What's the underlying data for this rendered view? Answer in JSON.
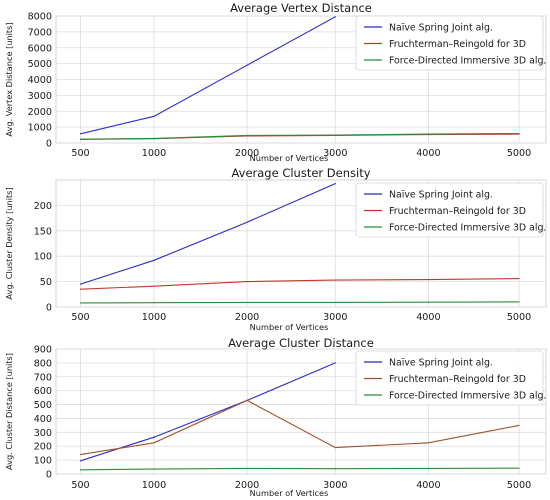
{
  "chart_data": [
    {
      "type": "line",
      "title": "Average Vertex Distance",
      "xlabel": "Number of Vertices",
      "ylabel": "Avg. Vertex Distance [units]",
      "categories": [
        "500",
        "1000",
        "2000",
        "3000",
        "4000",
        "5000"
      ],
      "ylim": [
        0,
        8000
      ],
      "yticks": [
        0,
        1000,
        2000,
        3000,
        4000,
        5000,
        6000,
        7000,
        8000
      ],
      "grid": true,
      "legend": "top-right",
      "series": [
        {
          "name": "Naïve Spring Joint alg.",
          "color": "#2b2bc8",
          "values": [
            580,
            1680,
            4900,
            7950,
            null,
            null
          ]
        },
        {
          "name": "Fruchterman–Reingold for 3D",
          "color": "#c0392b",
          "values": [
            230,
            270,
            440,
            480,
            530,
            560
          ]
        },
        {
          "name": "Force-Directed Immersive 3D alg.",
          "color": "#2e8b3e",
          "values": [
            240,
            290,
            480,
            500,
            560,
            600
          ]
        }
      ]
    },
    {
      "type": "line",
      "title": "Average Cluster Density",
      "xlabel": "Number of Vertices",
      "ylabel": "Avg. Cluster Density [units]",
      "categories": [
        "500",
        "1000",
        "2000",
        "3000",
        "4000",
        "5000"
      ],
      "ylim": [
        0,
        250
      ],
      "yticks": [
        0,
        50,
        100,
        150,
        200
      ],
      "grid": true,
      "legend": "top-right",
      "series": [
        {
          "name": "Naïve Spring Joint alg.",
          "color": "#2b2bc8",
          "values": [
            45,
            92,
            167,
            243,
            null,
            null
          ]
        },
        {
          "name": "Fruchterman–Reingold for 3D",
          "color": "#c0392b",
          "values": [
            35,
            41,
            50,
            53,
            54,
            56
          ]
        },
        {
          "name": "Force-Directed Immersive 3D alg.",
          "color": "#2e8b3e",
          "values": [
            8,
            8.5,
            9,
            9,
            9.5,
            10
          ]
        }
      ]
    },
    {
      "type": "line",
      "title": "Average Cluster Distance",
      "xlabel": "Number of Vertices",
      "ylabel": "Avg. Cluster Distance [units]",
      "categories": [
        "500",
        "1000",
        "2000",
        "3000",
        "4000",
        "5000"
      ],
      "ylim": [
        0,
        900
      ],
      "yticks": [
        0,
        100,
        200,
        300,
        400,
        500,
        600,
        700,
        800,
        900
      ],
      "grid": true,
      "legend": "top-right",
      "series": [
        {
          "name": "Naïve Spring Joint alg.",
          "color": "#2b2bc8",
          "values": [
            95,
            265,
            530,
            800,
            null,
            null
          ]
        },
        {
          "name": "Fruchterman–Reingold for 3D",
          "color": "#a0522d",
          "values": [
            140,
            225,
            530,
            190,
            225,
            350
          ]
        },
        {
          "name": "Force-Directed Immersive 3D alg.",
          "color": "#2e8b3e",
          "values": [
            30,
            35,
            40,
            38,
            40,
            42
          ]
        }
      ]
    }
  ]
}
